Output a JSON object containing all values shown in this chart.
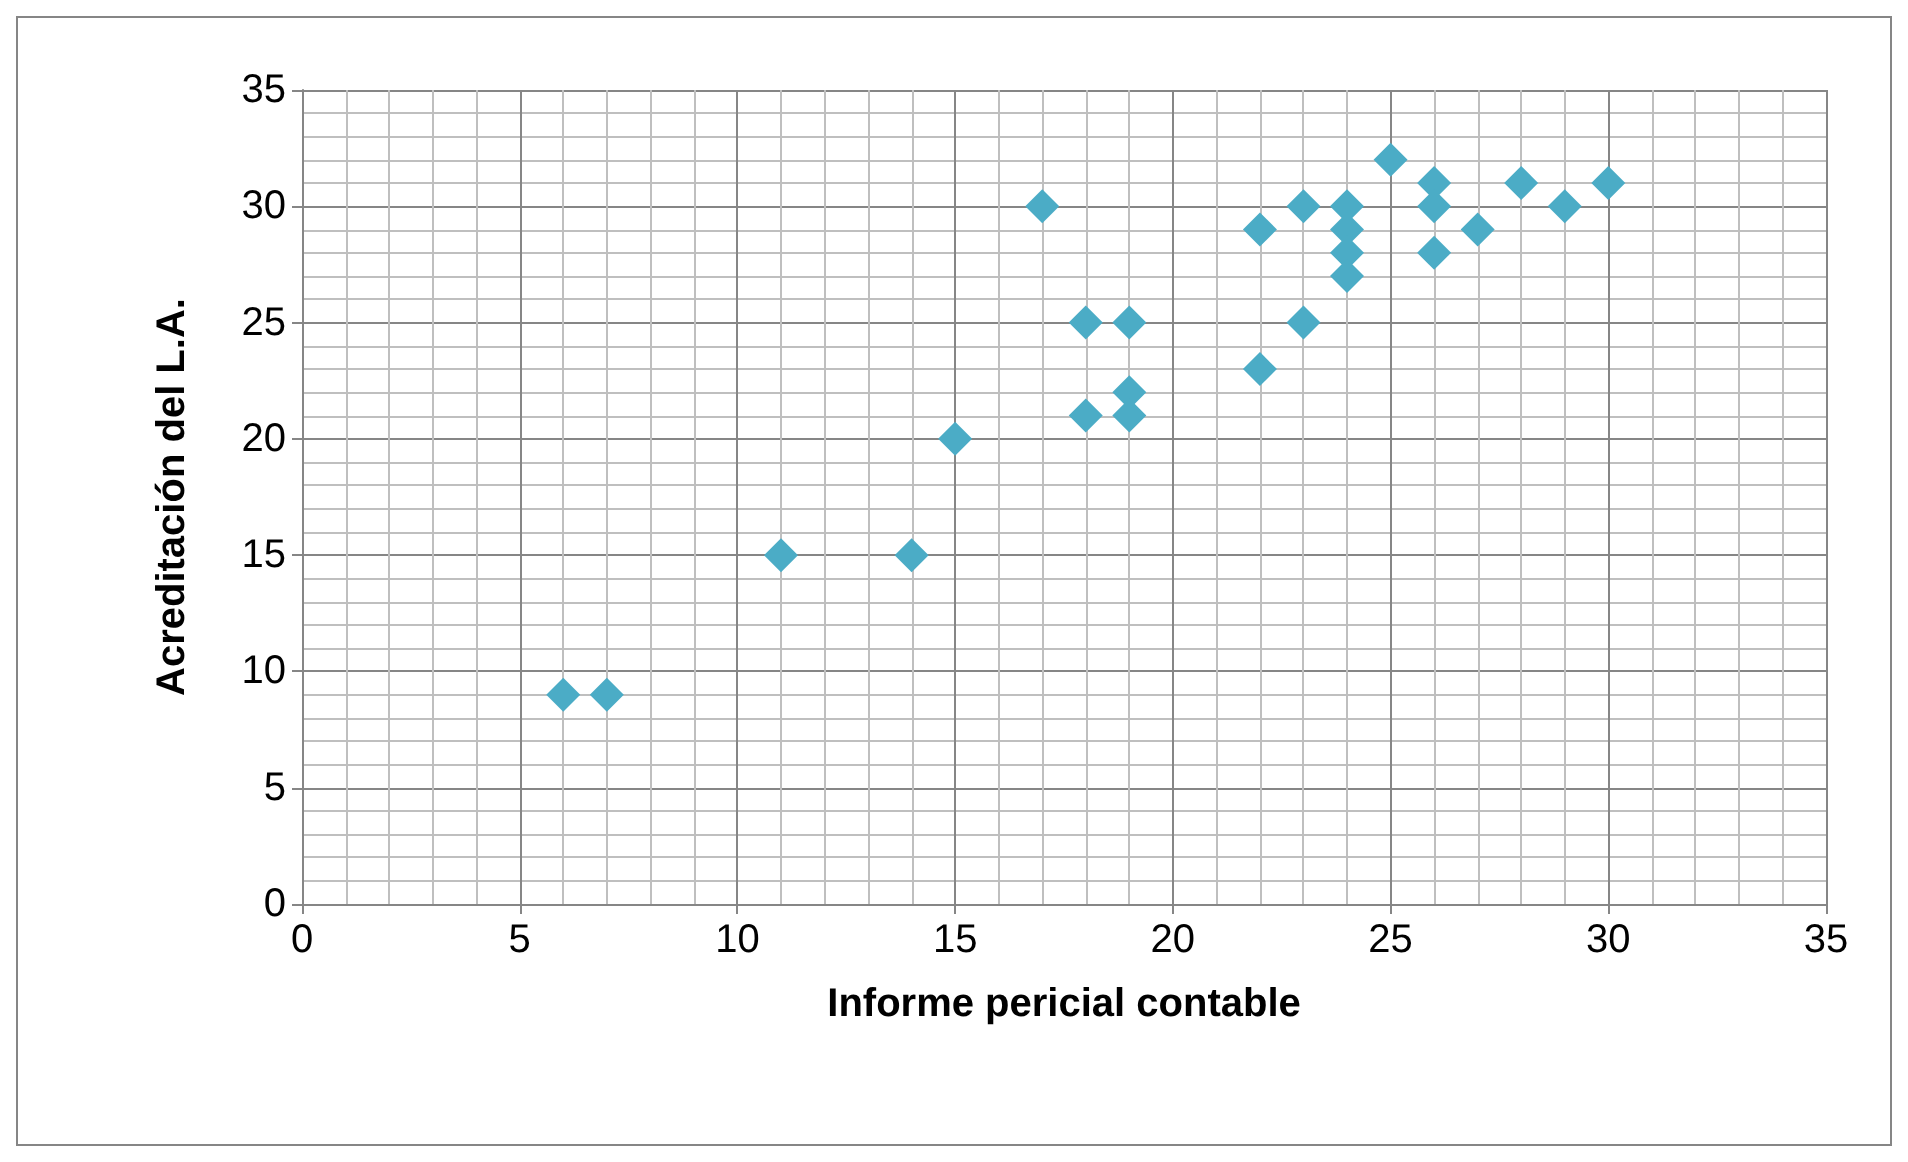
{
  "chart_data": {
    "type": "scatter",
    "xlabel": "Informe pericial contable",
    "ylabel": "Acreditación del L.A.",
    "x": [
      6,
      7,
      11,
      14,
      15,
      17,
      18,
      18,
      19,
      19,
      19,
      22,
      22,
      23,
      23,
      24,
      24,
      24,
      24,
      25,
      26,
      26,
      26,
      27,
      28,
      29,
      30
    ],
    "series": [
      {
        "color": "#4bacc6",
        "values": [
          9,
          9,
          15,
          15,
          20,
          30,
          25,
          21,
          25,
          22,
          21,
          29,
          23,
          30,
          25,
          30,
          29,
          28,
          27,
          32,
          31,
          30,
          28,
          29,
          31,
          30,
          31
        ]
      }
    ],
    "xlim": [
      0,
      35
    ],
    "xticks": [
      0,
      5,
      10,
      15,
      20,
      25,
      30,
      35
    ],
    "ylim": [
      0,
      35
    ],
    "yticks": [
      0,
      5,
      10,
      15,
      20,
      25,
      30,
      35
    ],
    "grid": true,
    "marker": "diamond"
  }
}
